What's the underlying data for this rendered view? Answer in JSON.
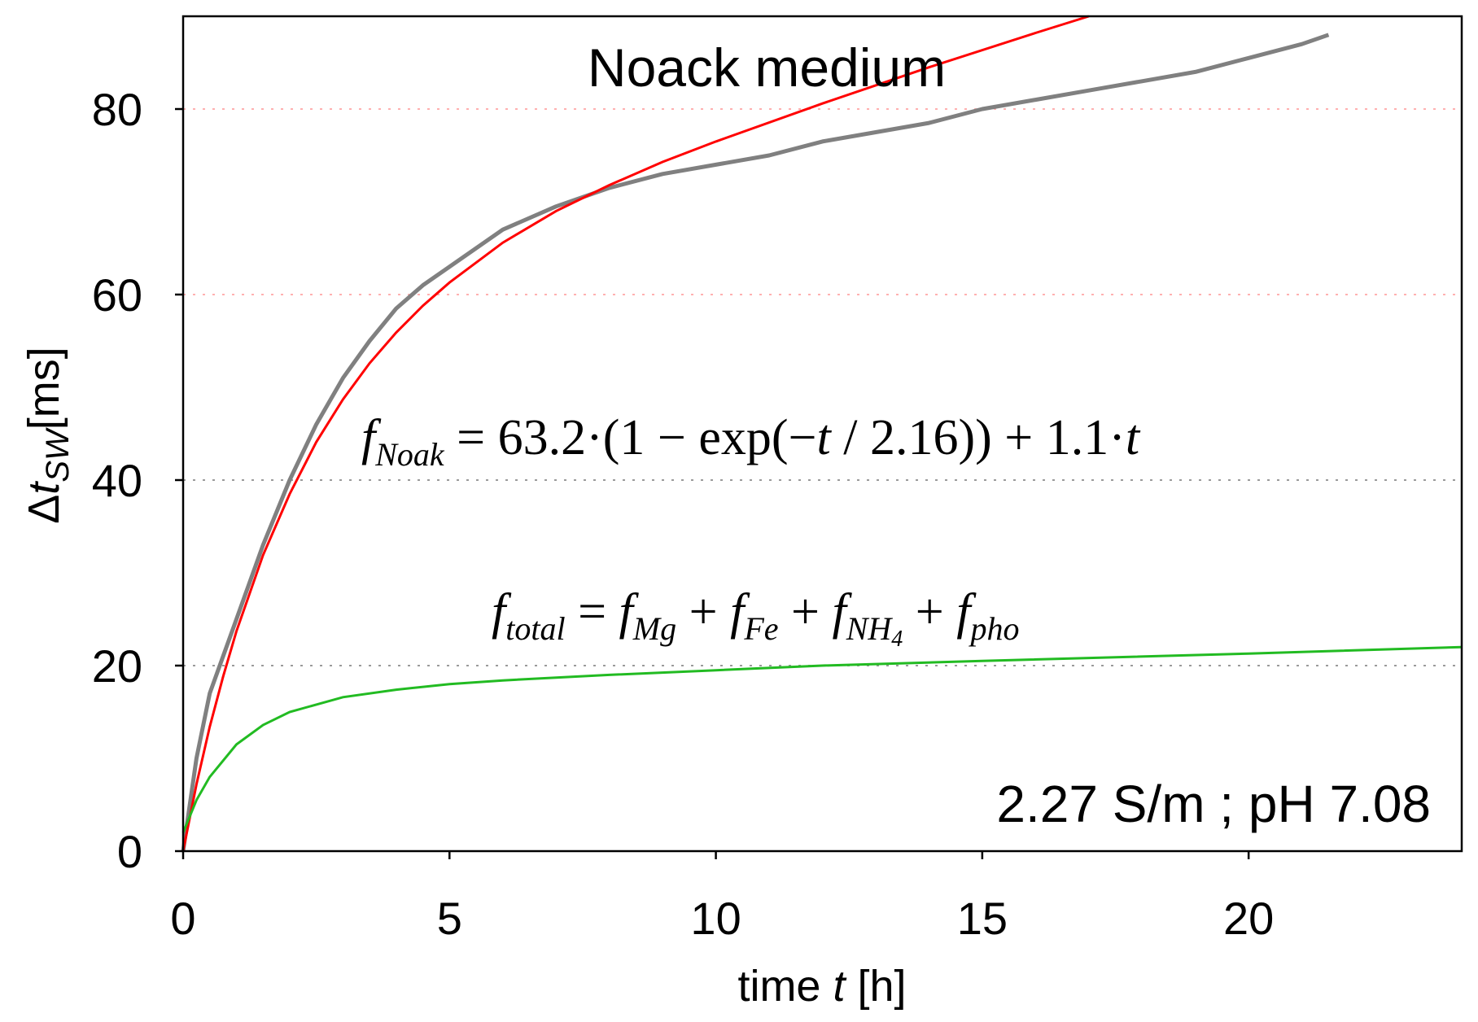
{
  "chart_data": {
    "type": "line",
    "title": "Noack medium",
    "xlabel": {
      "prefix": "time ",
      "var": "t",
      "suffix": " [h]"
    },
    "ylabel": {
      "delta": "Δ",
      "var": "t",
      "sub": "SW",
      "unit": "[ms]"
    },
    "xlim": [
      0,
      24
    ],
    "ylim": [
      0,
      90
    ],
    "xticks": [
      0,
      5,
      10,
      15,
      20
    ],
    "yticks": [
      0,
      20,
      40,
      60,
      80
    ],
    "grid": {
      "y_values": [
        20,
        40,
        60,
        80
      ]
    },
    "colors": {
      "measured": "#808080",
      "fit": "#ff0000",
      "total": "#22bb22",
      "grid_red": "#ffb0b0",
      "grid_gray": "#9a9a9a"
    },
    "series": [
      {
        "name": "measured",
        "x": [
          0,
          0.25,
          0.5,
          0.75,
          1,
          1.5,
          2,
          2.5,
          3,
          3.5,
          4,
          4.5,
          5,
          6,
          7,
          8,
          9,
          10,
          11,
          12,
          13,
          14,
          15,
          16,
          17,
          18,
          19,
          20,
          21,
          21.5
        ],
        "y": [
          0,
          10,
          17,
          21,
          25,
          33,
          40,
          46,
          51,
          55,
          58.5,
          61,
          63,
          67,
          69.5,
          71.5,
          73,
          74,
          75,
          76.5,
          77.5,
          78.5,
          80,
          81,
          82,
          83,
          84,
          85.5,
          87,
          88
        ]
      },
      {
        "name": "fit",
        "formula": {
          "a": 63.2,
          "tau": 2.16,
          "b": 1.1
        },
        "x": [
          0,
          0.25,
          0.5,
          0.75,
          1,
          1.5,
          2,
          2.5,
          3,
          3.5,
          4,
          4.5,
          5,
          6,
          7,
          8,
          9,
          10,
          12,
          14,
          16,
          18,
          20,
          22,
          24
        ],
        "y": [
          0,
          7.2,
          13.4,
          18.8,
          23.7,
          31.9,
          38.5,
          44.1,
          48.7,
          52.6,
          55.9,
          58.8,
          61.3,
          65.6,
          69.0,
          71.8,
          74.3,
          76.5,
          80.6,
          84.5,
          88.2,
          91.8,
          95.3,
          98.8,
          102.3
        ]
      },
      {
        "name": "total",
        "x": [
          0,
          0.25,
          0.5,
          1,
          1.5,
          2,
          3,
          4,
          5,
          6,
          8,
          10,
          12,
          15,
          20,
          24
        ],
        "y": [
          2,
          5.5,
          8,
          11.5,
          13.6,
          15,
          16.6,
          17.4,
          18,
          18.4,
          19,
          19.5,
          20,
          20.5,
          21.3,
          22
        ]
      }
    ],
    "annotations": {
      "fit_equation": {
        "f": "f",
        "sub": "Noak",
        "body1": " = 63.2·(1 − exp(−",
        "t": "t",
        "body2": " / 2.16)) + 1.1·",
        "t2": "t"
      },
      "total_equation": {
        "f": "f",
        "sub": "total",
        "eq": " = ",
        "terms": [
          {
            "f": "f",
            "sub": "Mg"
          },
          {
            "f": "f",
            "sub": "Fe"
          },
          {
            "f": "f",
            "sub": "NH",
            "subsub": "4"
          },
          {
            "f": "f",
            "sub": "pho"
          }
        ],
        "plus": " + "
      },
      "conditions": "2.27 S/m ; pH 7.08"
    }
  }
}
